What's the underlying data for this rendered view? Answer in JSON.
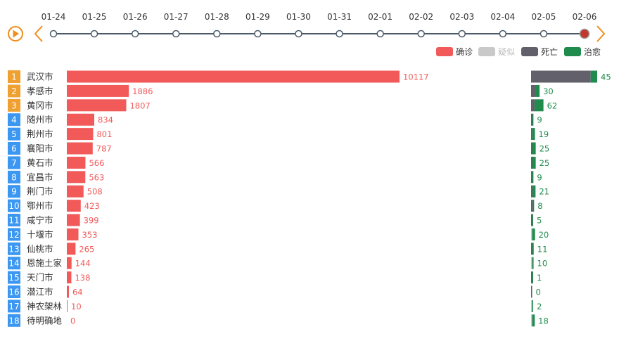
{
  "colors": {
    "confirmed": "#f25a5a",
    "suspected": "#c9c9c9",
    "death": "#62606a",
    "recovered": "#1f8b4d",
    "timeline_active": "#c0392b",
    "rank_top": "#f0a030",
    "rank_rest": "#3b97f2",
    "orange_control": "#f28c1b"
  },
  "timeline": {
    "dates": [
      "01-24",
      "01-25",
      "01-26",
      "01-27",
      "01-28",
      "01-29",
      "01-30",
      "01-31",
      "02-01",
      "02-02",
      "02-03",
      "02-04",
      "02-05",
      "02-06"
    ],
    "selected": "02-06",
    "play_icon": "play-icon",
    "prev_icon": "chevron-left-icon",
    "next_icon": "chevron-right-icon"
  },
  "legend": [
    {
      "label": "确诊",
      "color": "#f25a5a",
      "active": true
    },
    {
      "label": "疑似",
      "color": "#c9c9c9",
      "active": false
    },
    {
      "label": "死亡",
      "color": "#62606a",
      "active": true
    },
    {
      "label": "治愈",
      "color": "#1f8b4d",
      "active": true
    }
  ],
  "chart_data": {
    "type": "bar",
    "categories": [
      "武汉市",
      "孝感市",
      "黄冈市",
      "随州市",
      "荆州市",
      "襄阳市",
      "黄石市",
      "宜昌市",
      "荆门市",
      "鄂州市",
      "咸宁市",
      "十堰市",
      "仙桃市",
      "恩施土家",
      "天门市",
      "潜江市",
      "神农架林",
      "待明确地"
    ],
    "ranks": [
      "1",
      "2",
      "3",
      "4",
      "5",
      "6",
      "7",
      "8",
      "9",
      "10",
      "11",
      "12",
      "13",
      "14",
      "15",
      "16",
      "17",
      "18"
    ],
    "series": [
      {
        "name": "确诊",
        "values": [
          10117,
          1886,
          1807,
          834,
          801,
          787,
          566,
          563,
          508,
          423,
          399,
          353,
          265,
          144,
          138,
          64,
          10,
          0
        ]
      },
      {
        "name": "死亡",
        "values": [
          414,
          29,
          24,
          1,
          8,
          3,
          2,
          3,
          10,
          13,
          2,
          0,
          2,
          0,
          5,
          2,
          0,
          0
        ]
      },
      {
        "name": "治愈",
        "values": [
          45,
          30,
          62,
          9,
          19,
          25,
          25,
          9,
          21,
          8,
          5,
          20,
          11,
          10,
          1,
          0,
          2,
          18
        ]
      }
    ],
    "labels_right": [
      "45",
      "30",
      "62",
      "9",
      "19",
      "25",
      "25",
      "9",
      "21",
      "8",
      "5",
      "20",
      "11",
      "10",
      "1",
      "0",
      "2",
      "18"
    ],
    "confirmed_labels": [
      "10117",
      "1886",
      "1807",
      "834",
      "801",
      "787",
      "566",
      "563",
      "508",
      "423",
      "399",
      "353",
      "265",
      "144",
      "138",
      "64",
      "10",
      "0"
    ]
  }
}
